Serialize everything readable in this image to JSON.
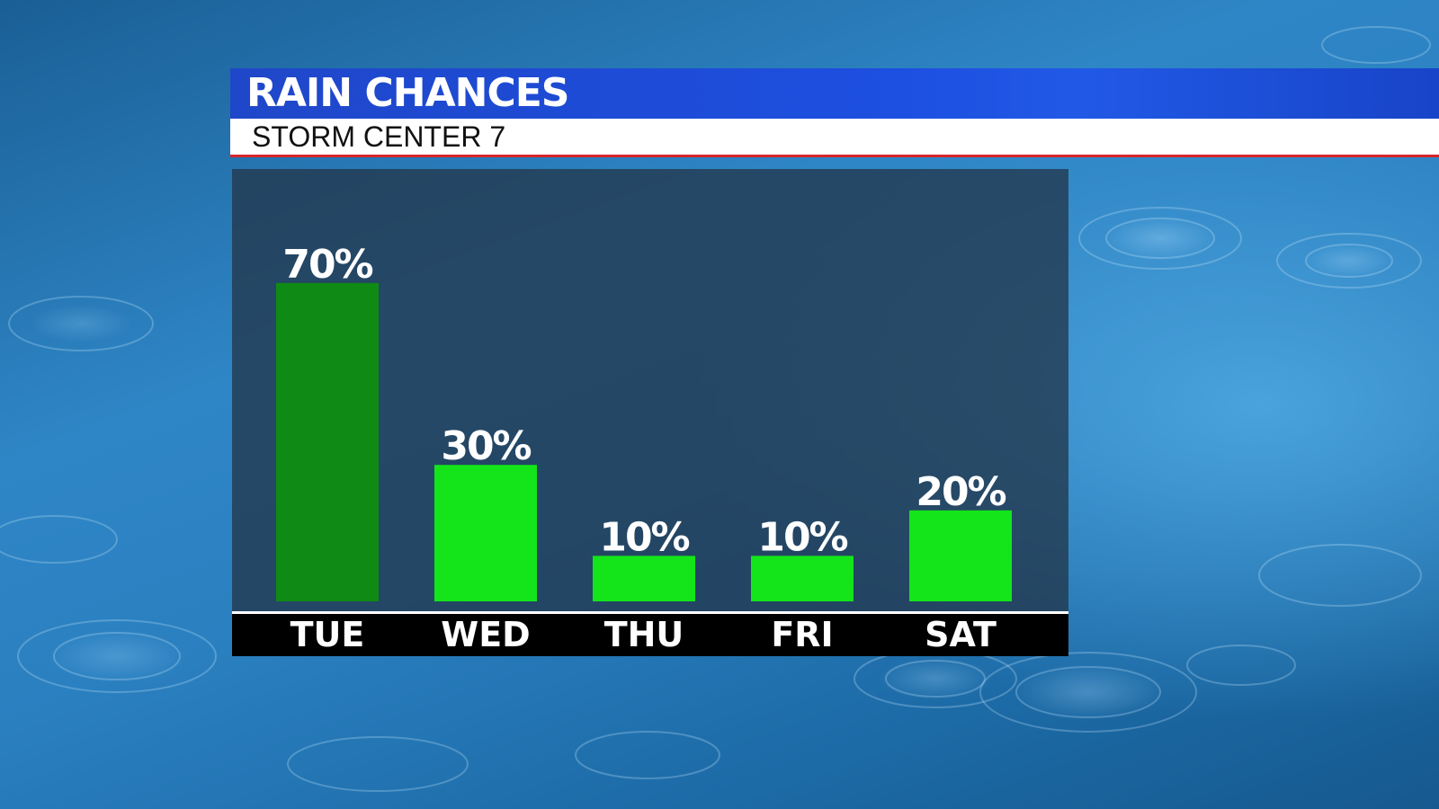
{
  "header": {
    "title": "RAIN CHANCES",
    "subtitle": "STORM CENTER 7"
  },
  "colors": {
    "title_bar": "#1d4fe0",
    "subtitle_bar": "#ffffff",
    "accent_line": "#d8262a",
    "bar_highlight": "#0f8a14",
    "bar_default": "#13e51a",
    "panel": "#23374b",
    "day_strip": "#000000"
  },
  "chart_data": {
    "type": "bar",
    "title": "RAIN CHANCES",
    "subtitle": "STORM CENTER 7",
    "categories": [
      "TUE",
      "WED",
      "THU",
      "FRI",
      "SAT"
    ],
    "values": [
      70,
      30,
      10,
      10,
      20
    ],
    "data_labels": [
      "70%",
      "30%",
      "10%",
      "10%",
      "20%"
    ],
    "unit": "%",
    "highlight_index": 0,
    "ylim": [
      0,
      100
    ],
    "grid": false,
    "legend": "none",
    "xlabel": "",
    "ylabel": ""
  }
}
